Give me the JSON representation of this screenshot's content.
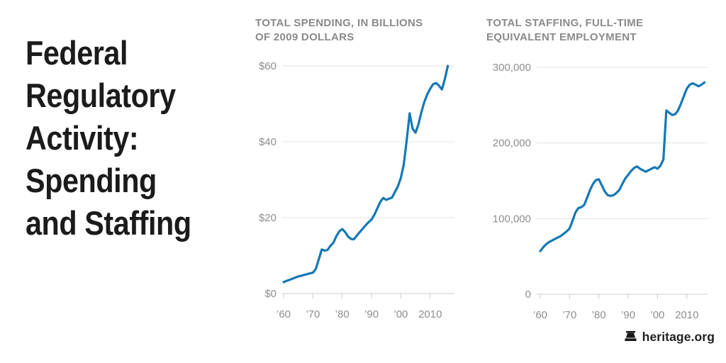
{
  "title": "Federal\nRegulatory\nActivity:\nSpending\nand Staffing",
  "footer": {
    "brand": "heritage.org",
    "icon": "liberty-bell-icon"
  },
  "colors": {
    "line": "#1478b4",
    "grid": "#e3e3e3",
    "axis": "#cccccc",
    "tick_label": "#8e8e8e",
    "chart_title": "#8a8a8a",
    "main_title": "#1b1b1b"
  },
  "chart_data": [
    {
      "type": "line",
      "title": "TOTAL SPENDING, IN BILLIONS\nOF 2009 DOLLARS",
      "legend_position": "none",
      "grid": "horizontal",
      "xlim": [
        1960,
        2016
      ],
      "ylim": [
        0,
        60
      ],
      "y_ticks": [
        {
          "label": "$60",
          "value": 60
        },
        {
          "label": "$40",
          "value": 40
        },
        {
          "label": "$20",
          "value": 20
        },
        {
          "label": "$0",
          "value": 0
        }
      ],
      "x_ticks": [
        {
          "label": "’60",
          "year": 1960
        },
        {
          "label": "’70",
          "year": 1970
        },
        {
          "label": "’80",
          "year": 1980
        },
        {
          "label": "’90",
          "year": 1990
        },
        {
          "label": "’00",
          "year": 2000
        },
        {
          "label": "2010",
          "year": 2010
        }
      ],
      "x": [
        1960,
        1961,
        1962,
        1963,
        1964,
        1965,
        1966,
        1967,
        1968,
        1969,
        1970,
        1971,
        1972,
        1973,
        1974,
        1975,
        1976,
        1977,
        1978,
        1979,
        1980,
        1981,
        1982,
        1983,
        1984,
        1985,
        1986,
        1987,
        1988,
        1989,
        1990,
        1991,
        1992,
        1993,
        1994,
        1995,
        1996,
        1997,
        1998,
        1999,
        2000,
        2001,
        2002,
        2003,
        2004,
        2005,
        2006,
        2007,
        2008,
        2009,
        2010,
        2011,
        2012,
        2013,
        2014,
        2015,
        2016
      ],
      "values": [
        3.0,
        3.3,
        3.6,
        3.9,
        4.2,
        4.5,
        4.7,
        4.9,
        5.1,
        5.3,
        5.5,
        6.5,
        9.0,
        11.6,
        11.3,
        11.5,
        12.6,
        13.4,
        15.1,
        16.4,
        17.0,
        16.2,
        15.0,
        14.4,
        14.3,
        15.3,
        16.2,
        17.1,
        18.0,
        18.8,
        19.5,
        20.8,
        22.5,
        24.2,
        25.2,
        24.7,
        25.0,
        25.3,
        26.8,
        28.3,
        30.5,
        34.0,
        40.5,
        47.5,
        43.5,
        42.4,
        44.6,
        47.8,
        50.5,
        52.5,
        54.0,
        55.2,
        55.5,
        54.8,
        53.8,
        56.5,
        60.0
      ]
    },
    {
      "type": "line",
      "title": "TOTAL STAFFING, FULL-TIME\nEQUIVALENT EMPLOYMENT",
      "legend_position": "none",
      "grid": "horizontal",
      "xlim": [
        1960,
        2016
      ],
      "ylim": [
        0,
        300000
      ],
      "y_ticks": [
        {
          "label": "300,000",
          "value": 300000
        },
        {
          "label": "200,000",
          "value": 200000
        },
        {
          "label": "100,000",
          "value": 100000
        },
        {
          "label": "0",
          "value": 0
        }
      ],
      "x_ticks": [
        {
          "label": "’60",
          "year": 1960
        },
        {
          "label": "’70",
          "year": 1970
        },
        {
          "label": "’80",
          "year": 1980
        },
        {
          "label": "’90",
          "year": 1990
        },
        {
          "label": "’00",
          "year": 2000
        },
        {
          "label": "2010",
          "year": 2010
        }
      ],
      "x": [
        1960,
        1961,
        1962,
        1963,
        1964,
        1965,
        1966,
        1967,
        1968,
        1969,
        1970,
        1971,
        1972,
        1973,
        1974,
        1975,
        1976,
        1977,
        1978,
        1979,
        1980,
        1981,
        1982,
        1983,
        1984,
        1985,
        1986,
        1987,
        1988,
        1989,
        1990,
        1991,
        1992,
        1993,
        1994,
        1995,
        1996,
        1997,
        1998,
        1999,
        2000,
        2001,
        2002,
        2003,
        2004,
        2005,
        2006,
        2007,
        2008,
        2009,
        2010,
        2011,
        2012,
        2013,
        2014,
        2015,
        2016
      ],
      "values": [
        57000,
        62000,
        66000,
        69000,
        71000,
        73000,
        75000,
        77000,
        80000,
        83000,
        87000,
        97000,
        108000,
        114000,
        115000,
        118000,
        128000,
        138000,
        146000,
        151000,
        152000,
        144000,
        136000,
        131000,
        130000,
        131000,
        134000,
        138000,
        146000,
        153000,
        158000,
        163000,
        167000,
        169000,
        166000,
        164000,
        162000,
        164000,
        166000,
        168000,
        166000,
        170000,
        178000,
        243000,
        240000,
        237000,
        238000,
        243000,
        252000,
        262000,
        272000,
        277000,
        279000,
        277000,
        275000,
        277000,
        280000
      ]
    }
  ]
}
